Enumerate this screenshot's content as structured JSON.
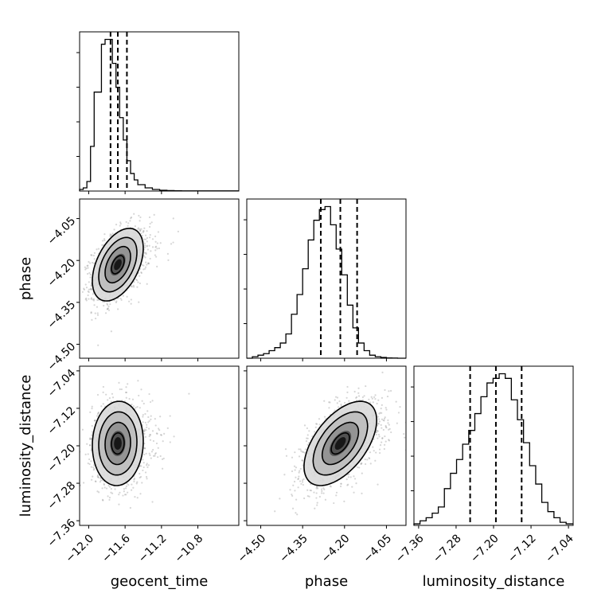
{
  "chart_data": {
    "type": "corner",
    "parameters": [
      "geocent_time",
      "phase",
      "luminosity_distance"
    ],
    "axes": {
      "geocent_time": {
        "label": "geocent_time",
        "range": [
          -12.1,
          -10.35
        ],
        "ticks": [
          -12.0,
          -11.6,
          -11.2,
          -10.8
        ],
        "tick_labels": [
          "−12.0",
          "−11.6",
          "−11.2",
          "−10.8"
        ],
        "mean": -11.68,
        "sd": 0.14
      },
      "phase": {
        "label": "phase",
        "range": [
          -4.55,
          -3.98
        ],
        "ticks": [
          -4.5,
          -4.35,
          -4.2,
          -4.05
        ],
        "tick_labels": [
          "−4.50",
          "−4.35",
          "−4.20",
          "−4.05"
        ],
        "mean": -4.215,
        "sd": 0.065
      },
      "luminosity_distance": {
        "label": "luminosity_distance",
        "range": [
          -7.37,
          -7.03
        ],
        "ticks": [
          -7.36,
          -7.28,
          -7.2,
          -7.12,
          -7.04
        ],
        "tick_labels": [
          "−7.36",
          "−7.28",
          "−7.20",
          "−7.12",
          "−7.04"
        ],
        "mean": -7.195,
        "sd": 0.045
      }
    },
    "histograms": {
      "geocent_time": {
        "quantiles": [
          -11.76,
          -11.68,
          -11.58
        ],
        "bin_edges": [
          -12.1,
          -12.06,
          -12.02,
          -11.98,
          -11.94,
          -11.9,
          -11.86,
          -11.82,
          -11.78,
          -11.74,
          -11.7,
          -11.66,
          -11.62,
          -11.58,
          -11.54,
          -11.5,
          -11.46,
          -11.42,
          -11.38,
          -11.34,
          -11.3,
          -11.26,
          -11.22,
          -11.18,
          -11.14,
          -11.1,
          -11.06,
          -11.02,
          -10.98,
          -10.94,
          -10.9,
          -10.86,
          -10.82,
          -10.78,
          -10.74,
          -10.7,
          -10.66,
          -10.62,
          -10.58,
          -10.54,
          -10.5,
          -10.46,
          -10.42,
          -10.38,
          -10.35
        ],
        "counts": [
          0.01,
          0.02,
          0.06,
          0.28,
          0.62,
          0.62,
          0.92,
          0.95,
          0.95,
          0.8,
          0.65,
          0.46,
          0.32,
          0.19,
          0.11,
          0.07,
          0.04,
          0.04,
          0.02,
          0.02,
          0.01,
          0.01,
          0.005,
          0.005,
          0.003,
          0.003,
          0.002,
          0.002,
          0.001,
          0.001,
          0.001,
          0.001,
          0.001,
          0.001,
          0.001,
          0.001,
          0.001,
          0.001,
          0.001,
          0.001,
          0.001,
          0.001,
          0.001,
          0.001
        ]
      },
      "phase": {
        "quantiles": [
          -4.285,
          -4.215,
          -4.155
        ],
        "bin_edges": [
          -4.55,
          -4.53,
          -4.51,
          -4.49,
          -4.47,
          -4.45,
          -4.43,
          -4.41,
          -4.39,
          -4.37,
          -4.35,
          -4.33,
          -4.31,
          -4.29,
          -4.27,
          -4.25,
          -4.23,
          -4.21,
          -4.19,
          -4.17,
          -4.15,
          -4.13,
          -4.11,
          -4.09,
          -4.07,
          -4.05,
          -4.03,
          -4.01,
          -3.99,
          -3.98
        ],
        "counts": [
          0.0,
          0.01,
          0.02,
          0.03,
          0.05,
          0.07,
          0.1,
          0.16,
          0.29,
          0.42,
          0.59,
          0.78,
          0.91,
          0.98,
          1.0,
          0.88,
          0.72,
          0.55,
          0.35,
          0.2,
          0.1,
          0.05,
          0.02,
          0.01,
          0.005,
          0.002,
          0.001,
          0.0,
          0.0
        ]
      },
      "luminosity_distance": {
        "quantiles": [
          -7.25,
          -7.195,
          -7.14
        ],
        "bin_edges": [
          -7.37,
          -7.357,
          -7.344,
          -7.331,
          -7.318,
          -7.305,
          -7.292,
          -7.279,
          -7.266,
          -7.253,
          -7.24,
          -7.227,
          -7.214,
          -7.201,
          -7.188,
          -7.175,
          -7.162,
          -7.149,
          -7.136,
          -7.123,
          -7.11,
          -7.097,
          -7.084,
          -7.071,
          -7.058,
          -7.045,
          -7.03
        ],
        "counts": [
          0.01,
          0.03,
          0.05,
          0.08,
          0.12,
          0.24,
          0.34,
          0.43,
          0.53,
          0.62,
          0.73,
          0.84,
          0.93,
          0.96,
          0.99,
          0.96,
          0.82,
          0.69,
          0.54,
          0.39,
          0.27,
          0.15,
          0.09,
          0.05,
          0.02,
          0.01
        ]
      }
    },
    "pairs": [
      {
        "x": "geocent_time",
        "y": "phase",
        "rho": 0.45
      },
      {
        "x": "geocent_time",
        "y": "luminosity_distance",
        "rho": 0.05
      },
      {
        "x": "phase",
        "y": "luminosity_distance",
        "rho": 0.55
      }
    ],
    "contour_levels_sigma": [
      0.5,
      1.0,
      1.5,
      2.0
    ],
    "grid": true,
    "legend": "none"
  }
}
